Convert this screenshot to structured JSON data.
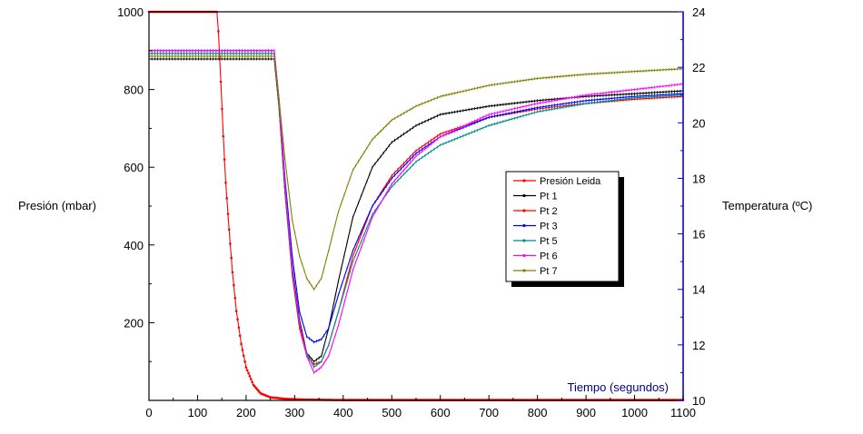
{
  "chart_data": {
    "type": "line",
    "xlabel": "Tiempo (segundos)",
    "ylabel": "Presión (mbar)",
    "y2label": "Temperatura (ºC)",
    "xlim": [
      0,
      1100
    ],
    "ylim": [
      0,
      1000
    ],
    "y2lim": [
      10,
      24
    ],
    "xticks": [
      0,
      100,
      200,
      300,
      400,
      500,
      600,
      700,
      800,
      900,
      1000,
      1100
    ],
    "yticks": [
      200,
      400,
      600,
      800,
      1000
    ],
    "y2ticks": [
      10,
      12,
      14,
      16,
      18,
      20,
      22,
      24
    ],
    "grid": false,
    "legend_position": "center-right",
    "series": [
      {
        "name": "Presión Leida",
        "axis": "left",
        "color": "#ff0000",
        "marker": "dot",
        "x": [
          0,
          140,
          143,
          148,
          153,
          158,
          165,
          172,
          180,
          190,
          200,
          215,
          230,
          250,
          280,
          320,
          400,
          600,
          1100
        ],
        "y": [
          1000,
          1000,
          950,
          820,
          680,
          560,
          440,
          330,
          230,
          145,
          85,
          40,
          18,
          8,
          4,
          2,
          1,
          1,
          1
        ]
      },
      {
        "name": "Pt 1",
        "axis": "right",
        "color": "#000000",
        "x": [
          0,
          258,
          268,
          280,
          295,
          310,
          325,
          340,
          355,
          370,
          390,
          420,
          460,
          500,
          550,
          600,
          700,
          800,
          900,
          1000,
          1100
        ],
        "y": [
          22.3,
          22.3,
          20.5,
          17.5,
          14.8,
          12.9,
          11.7,
          11.4,
          11.6,
          12.6,
          14.3,
          16.6,
          18.4,
          19.3,
          19.9,
          20.3,
          20.6,
          20.8,
          20.95,
          21.05,
          21.15
        ]
      },
      {
        "name": "Pt 2",
        "axis": "right",
        "color": "#ff0000",
        "x": [
          0,
          258,
          268,
          280,
          295,
          310,
          325,
          340,
          355,
          370,
          390,
          420,
          460,
          500,
          550,
          600,
          700,
          800,
          900,
          1000,
          1100
        ],
        "y": [
          22.5,
          22.5,
          20.5,
          17.5,
          14.5,
          12.6,
          11.6,
          11.3,
          11.4,
          12.0,
          13.2,
          15.2,
          17.0,
          18.1,
          19.0,
          19.6,
          20.2,
          20.5,
          20.7,
          20.85,
          20.95
        ]
      },
      {
        "name": "Pt 3",
        "axis": "right",
        "color": "#0000ff",
        "x": [
          0,
          258,
          268,
          280,
          295,
          310,
          325,
          340,
          355,
          370,
          390,
          420,
          460,
          500,
          550,
          600,
          700,
          800,
          900,
          1000,
          1100
        ],
        "y": [
          22.6,
          22.6,
          20.8,
          18.0,
          15.2,
          13.2,
          12.3,
          12.1,
          12.2,
          12.6,
          13.8,
          15.4,
          17.0,
          18.0,
          18.9,
          19.5,
          20.2,
          20.55,
          20.8,
          20.95,
          21.05
        ]
      },
      {
        "name": "Pt 5",
        "axis": "right",
        "color": "#008b8b",
        "x": [
          0,
          258,
          268,
          280,
          295,
          310,
          325,
          340,
          355,
          370,
          390,
          420,
          460,
          500,
          550,
          600,
          700,
          800,
          900,
          1000,
          1100
        ],
        "y": [
          22.5,
          22.5,
          20.6,
          17.6,
          14.6,
          12.7,
          11.7,
          11.2,
          11.4,
          12.0,
          13.2,
          15.0,
          16.7,
          17.7,
          18.6,
          19.2,
          19.9,
          20.4,
          20.7,
          20.9,
          21.0
        ]
      },
      {
        "name": "Pt 6",
        "axis": "right",
        "color": "#ff00ff",
        "x": [
          0,
          258,
          268,
          280,
          295,
          310,
          325,
          340,
          355,
          370,
          390,
          420,
          460,
          500,
          550,
          600,
          700,
          800,
          900,
          1000,
          1100
        ],
        "y": [
          22.6,
          22.6,
          20.8,
          17.8,
          14.7,
          12.8,
          11.6,
          11.0,
          11.2,
          11.6,
          12.7,
          14.7,
          16.6,
          17.8,
          18.8,
          19.5,
          20.3,
          20.7,
          21.0,
          21.2,
          21.4
        ]
      },
      {
        "name": "Pt 7",
        "axis": "right",
        "color": "#808000",
        "x": [
          0,
          258,
          268,
          280,
          295,
          310,
          325,
          340,
          355,
          370,
          390,
          420,
          460,
          500,
          550,
          600,
          700,
          800,
          900,
          1000,
          1100
        ],
        "y": [
          22.4,
          22.4,
          20.8,
          18.7,
          16.5,
          15.2,
          14.4,
          14.0,
          14.4,
          15.4,
          16.8,
          18.3,
          19.4,
          20.1,
          20.6,
          20.95,
          21.35,
          21.6,
          21.75,
          21.85,
          21.95
        ]
      }
    ]
  }
}
